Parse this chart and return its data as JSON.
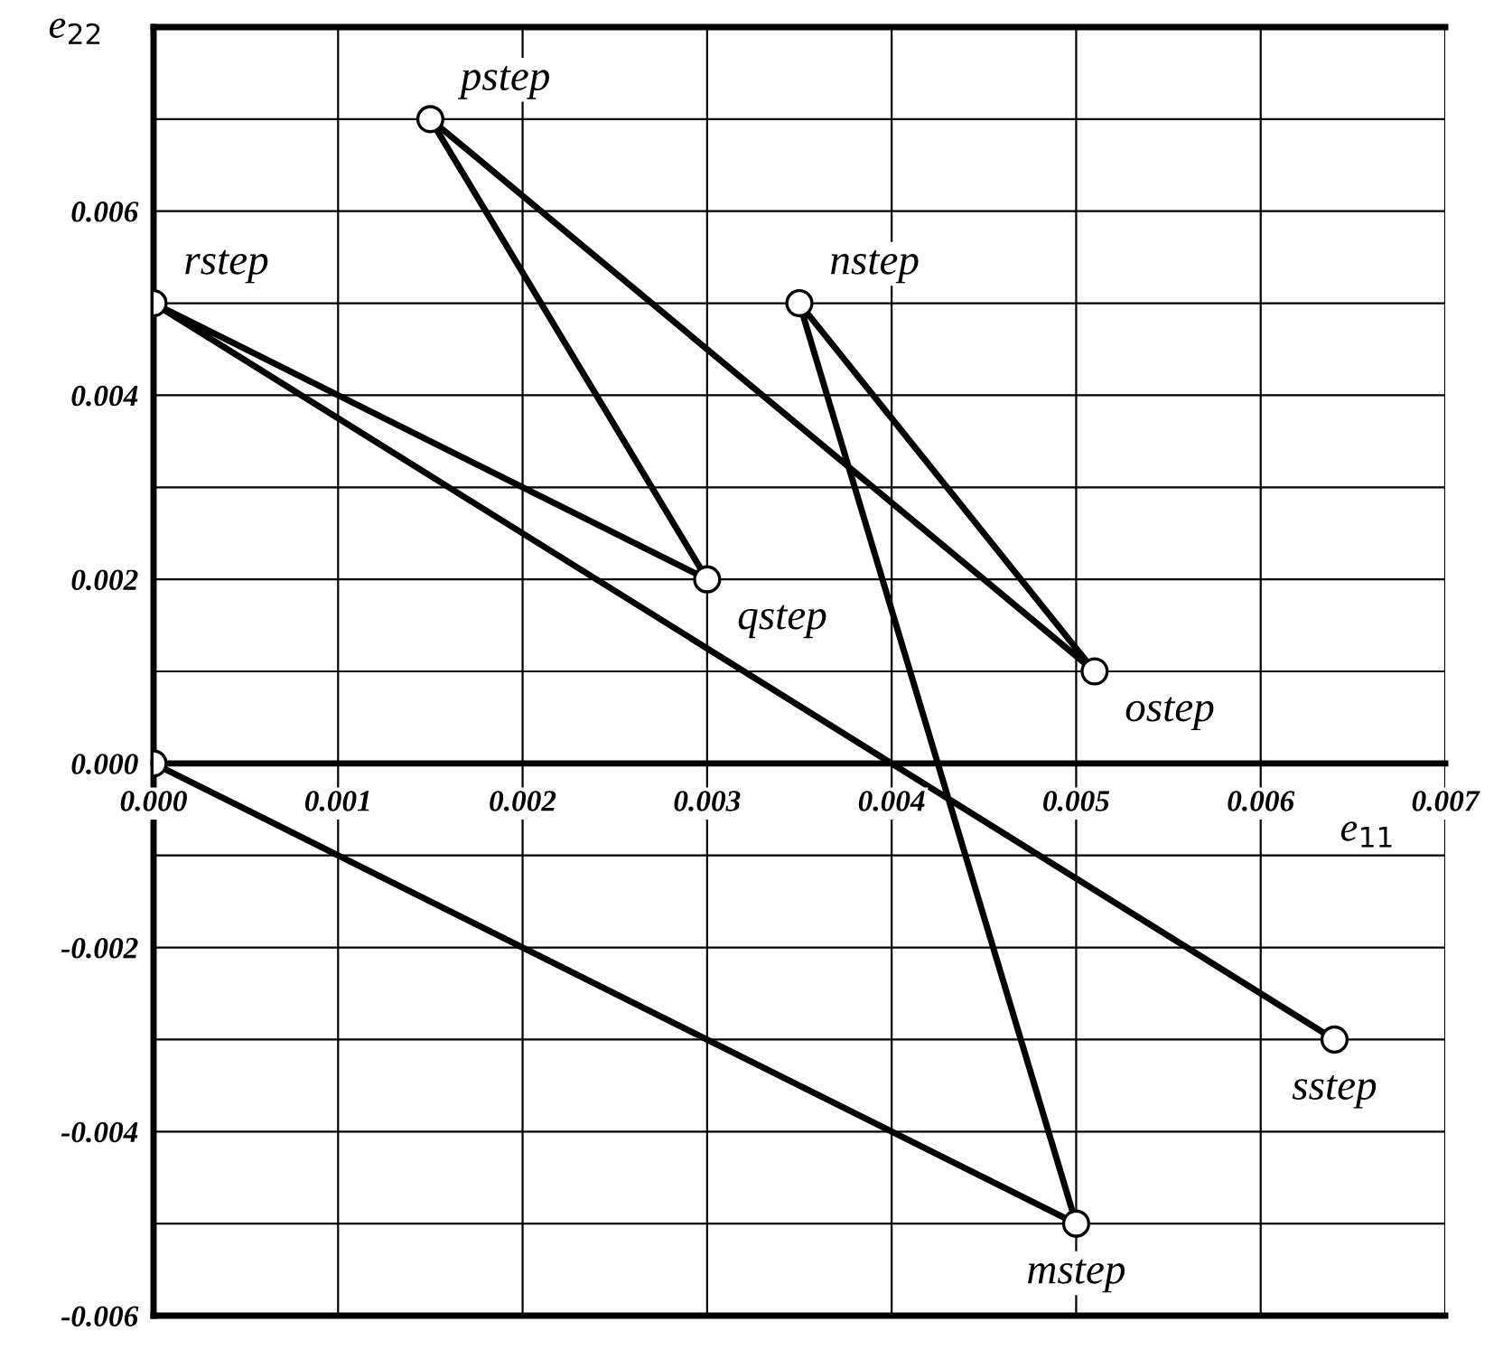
{
  "chart_data": {
    "type": "line",
    "xlabel": "e$_{11}$",
    "ylabel": "e$_{22}$",
    "x": [
      0,
      0.005,
      0.0035,
      0.0051,
      0.0015,
      0.003,
      0,
      0.0064
    ],
    "series": [
      {
        "color": "#000000",
        "values": [
          0,
          -0.005,
          0.005,
          0.001,
          0.007,
          0.002,
          0.005,
          -0.003
        ]
      }
    ],
    "marker": "circle",
    "line_style": "solid",
    "grid": true,
    "xlim": [
      0,
      0.007
    ],
    "ylim": [
      -0.006,
      0.008
    ],
    "xticks": [
      {
        "value": 0,
        "label": "0.000"
      },
      {
        "value": 0.001,
        "label": "0.001"
      },
      {
        "value": 0.002,
        "label": "0.002"
      },
      {
        "value": 0.003,
        "label": "0.003"
      },
      {
        "value": 0.004,
        "label": "0.004"
      },
      {
        "value": 0.005,
        "label": "0.005"
      },
      {
        "value": 0.006,
        "label": "0.006"
      },
      {
        "value": 0.007,
        "label": "0.007"
      }
    ],
    "yticks": [
      {
        "value": -0.006,
        "label": "-0.006"
      },
      {
        "value": -0.005,
        "label": null
      },
      {
        "value": -0.004,
        "label": "-0.004"
      },
      {
        "value": -0.003,
        "label": null
      },
      {
        "value": -0.002,
        "label": "-0.002"
      },
      {
        "value": -0.001,
        "label": null
      },
      {
        "value": 0,
        "label": "0.000"
      },
      {
        "value": 0.001,
        "label": null
      },
      {
        "value": 0.002,
        "label": "0.002"
      },
      {
        "value": 0.003,
        "label": null
      },
      {
        "value": 0.004,
        "label": "0.004"
      },
      {
        "value": 0.005,
        "label": null
      },
      {
        "value": 0.006,
        "label": "0.006"
      },
      {
        "value": 0.007,
        "label": null
      },
      {
        "value": 0.008,
        "label": null
      }
    ],
    "annotations": [
      {
        "text": "mstep",
        "x": 0.005,
        "y": -0.005
      },
      {
        "text": "nstep",
        "x": 0.0035,
        "y": 0.005
      },
      {
        "text": "ostep",
        "x": 0.0051,
        "y": 0.001
      },
      {
        "text": "pstep",
        "x": 0.0015,
        "y": 0.007
      },
      {
        "text": "qstep",
        "x": 0.003,
        "y": 0.002
      },
      {
        "text": "rstep",
        "x": 0,
        "y": 0.005
      },
      {
        "text": "sstep",
        "x": 0.0064,
        "y": -0.003
      }
    ]
  }
}
